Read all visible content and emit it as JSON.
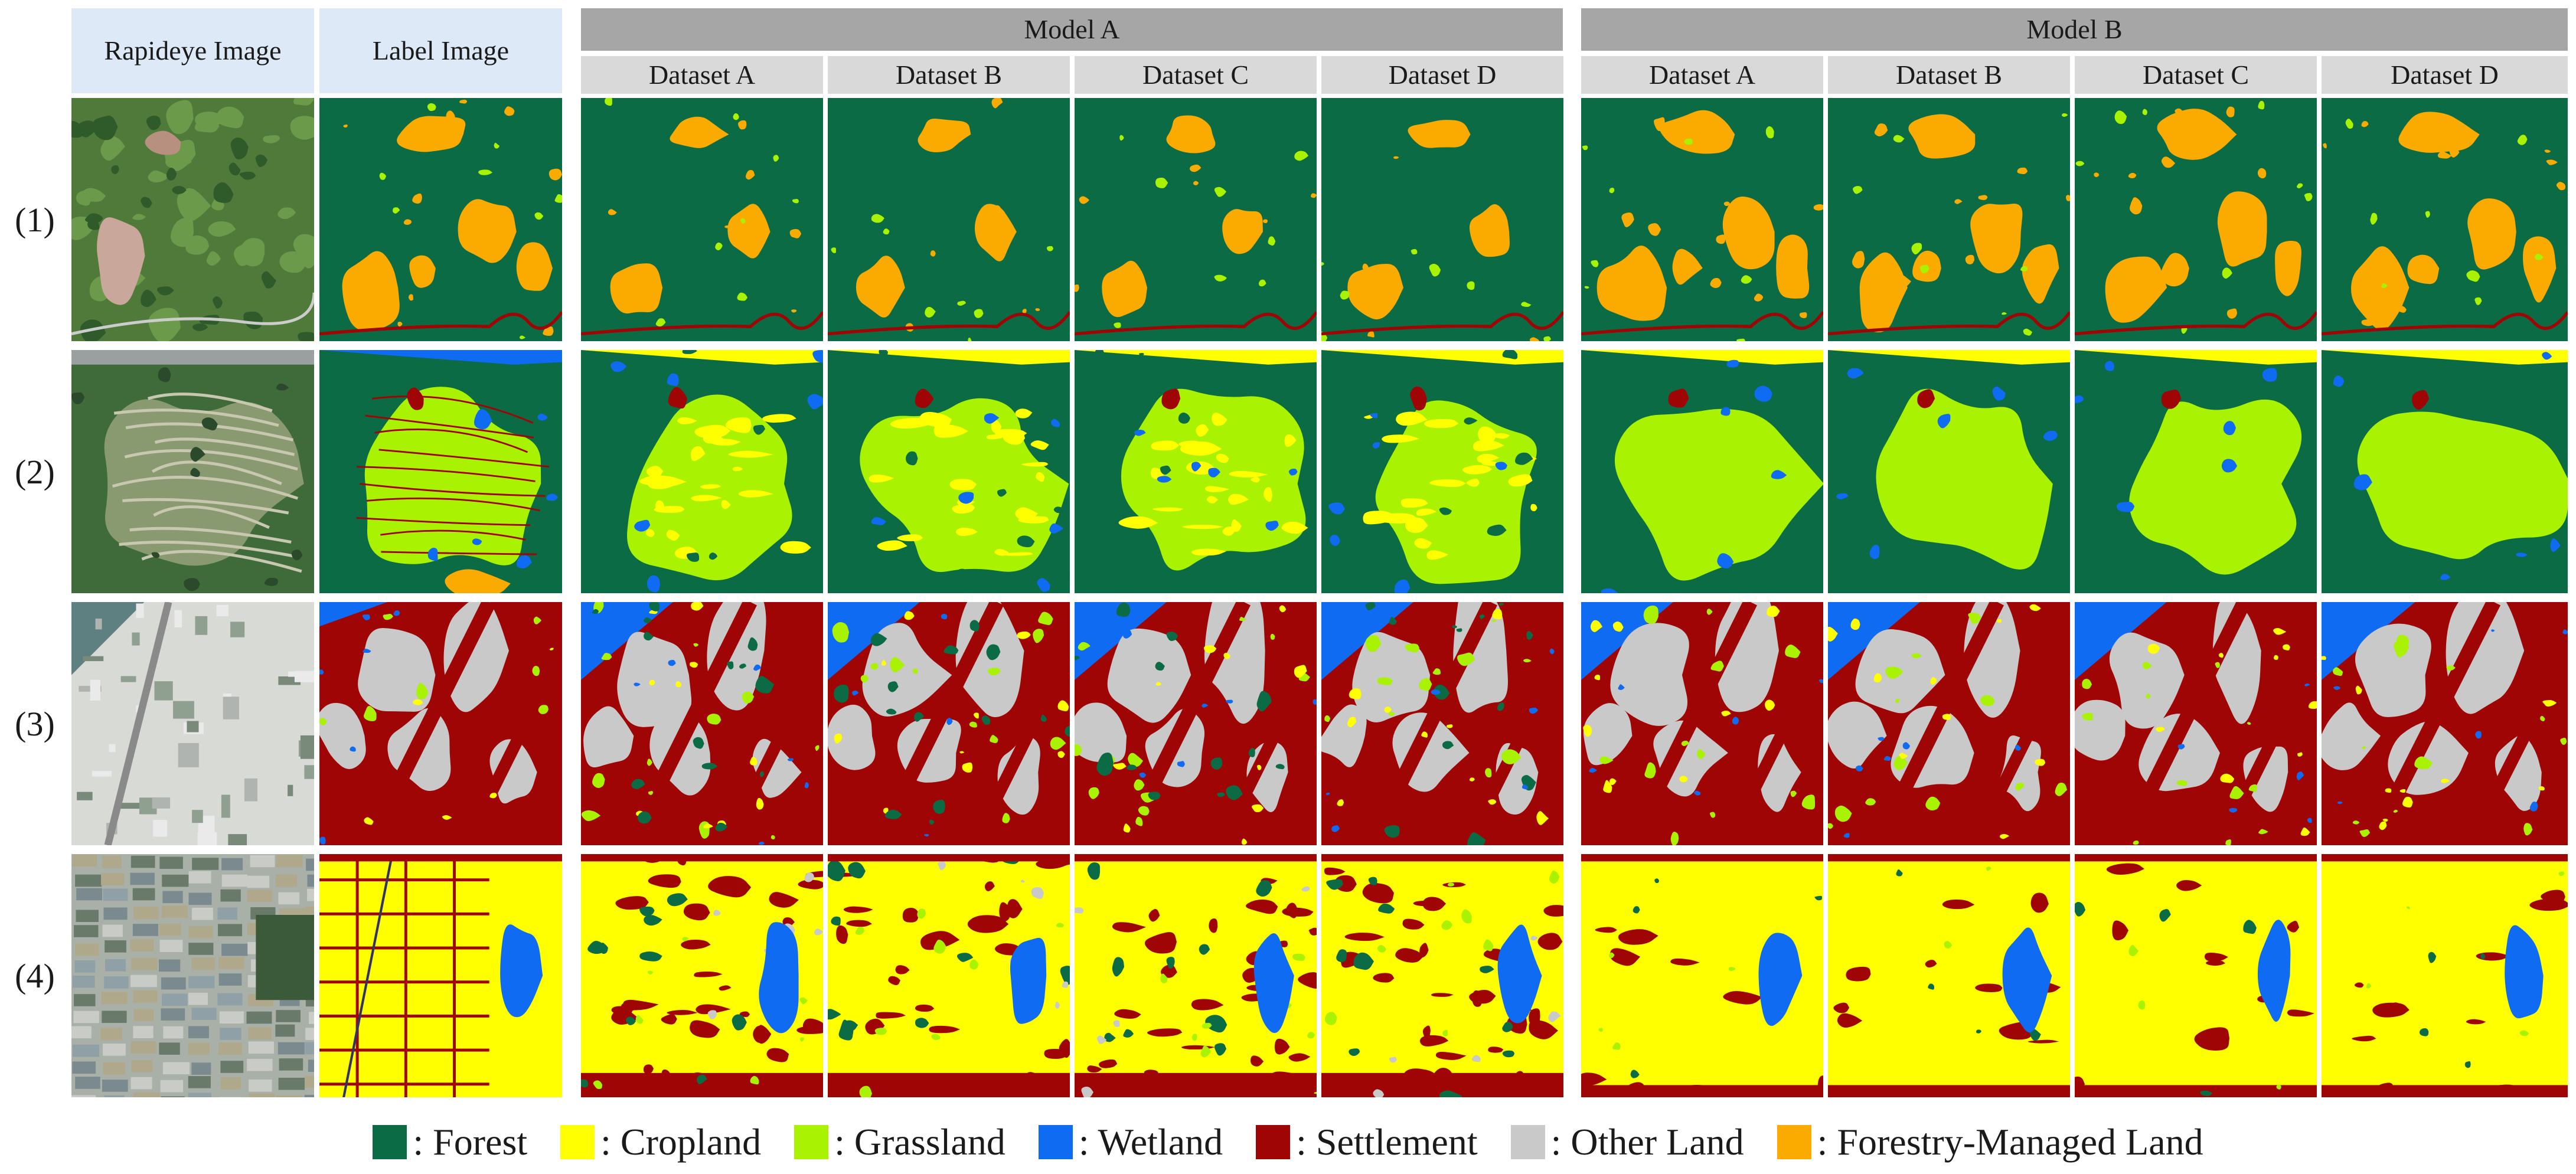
{
  "headers": {
    "rapideye": "Rapideye Image",
    "label": "Label Image",
    "model_a": "Model A",
    "model_b": "Model B",
    "datasets": [
      "Dataset A",
      "Dataset B",
      "Dataset C",
      "Dataset D"
    ]
  },
  "rows": [
    "(1)",
    "(2)",
    "(3)",
    "(4)"
  ],
  "legend": [
    {
      "label": ": Forest",
      "color": "#0a6b45"
    },
    {
      "label": ": Cropland",
      "color": "#ffff00"
    },
    {
      "label": ": Grassland",
      "color": "#a9f201"
    },
    {
      "label": ": Wetland",
      "color": "#0f6bf2"
    },
    {
      "label": ": Settlement",
      "color": "#a00505"
    },
    {
      "label": ": Other Land",
      "color": "#c9c9c9"
    },
    {
      "label": ": Forestry-Managed Land",
      "color": "#fbaa00"
    }
  ]
}
